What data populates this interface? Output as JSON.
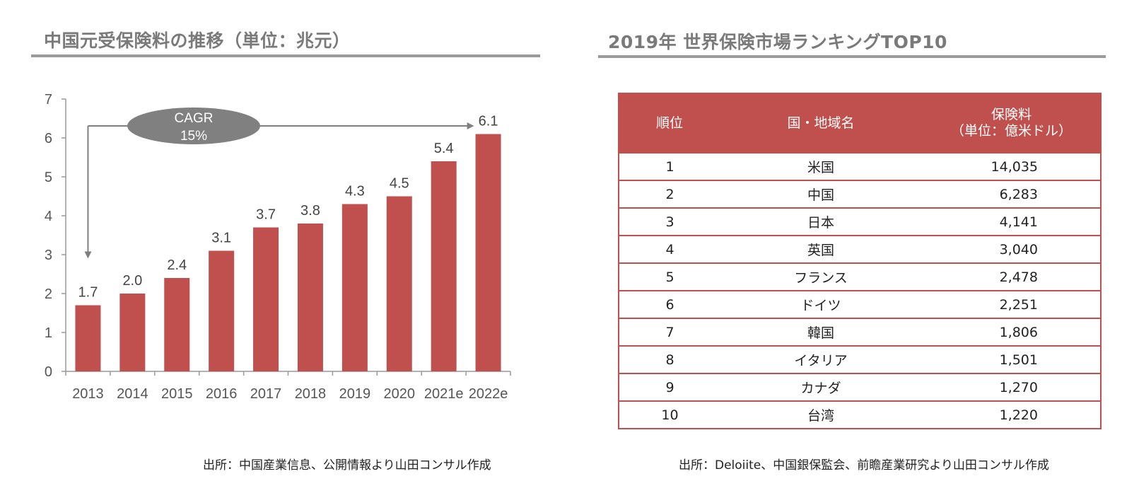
{
  "left": {
    "title": "中国元受保険料の推移（単位：兆元）",
    "source": "出所：中国産業信息、公開情報より山田コンサル作成",
    "cagr_label": "CAGR",
    "cagr_value": "15%"
  },
  "right": {
    "title": "2019年 世界保険市場ランキングTOP10",
    "source": "出所：Deloiite、中国銀保監会、前瞻産業研究より山田コンサル作成",
    "headers": {
      "rank": "順位",
      "country": "国・地域名",
      "premium_line1": "保険料",
      "premium_line2": "（単位：億米ドル）"
    },
    "rows": [
      {
        "rank": "1",
        "country": "米国",
        "premium": "14,035"
      },
      {
        "rank": "2",
        "country": "中国",
        "premium": "6,283"
      },
      {
        "rank": "3",
        "country": "日本",
        "premium": "4,141"
      },
      {
        "rank": "4",
        "country": "英国",
        "premium": "3,040"
      },
      {
        "rank": "5",
        "country": "フランス",
        "premium": "2,478"
      },
      {
        "rank": "6",
        "country": "ドイツ",
        "premium": "2,251"
      },
      {
        "rank": "7",
        "country": "韓国",
        "premium": "1,806"
      },
      {
        "rank": "8",
        "country": "イタリア",
        "premium": "1,501"
      },
      {
        "rank": "9",
        "country": "カナダ",
        "premium": "1,270"
      },
      {
        "rank": "10",
        "country": "台湾",
        "premium": "1,220"
      }
    ]
  },
  "colors": {
    "bar": "#c0504d",
    "table_accent": "#c0504d",
    "cagr_ellipse": "#808080",
    "axis": "#999999",
    "title_text": "#7a7a7a"
  },
  "chart_data": {
    "type": "bar",
    "title": "中国元受保険料の推移（単位：兆元）",
    "categories": [
      "2013",
      "2014",
      "2015",
      "2016",
      "2017",
      "2018",
      "2019",
      "2020",
      "2021e",
      "2022e"
    ],
    "values": [
      1.7,
      2.0,
      2.4,
      3.1,
      3.7,
      3.8,
      4.3,
      4.5,
      5.4,
      6.1
    ],
    "value_labels": [
      "1.7",
      "2.0",
      "2.4",
      "3.1",
      "3.7",
      "3.8",
      "4.3",
      "4.5",
      "5.4",
      "6.1"
    ],
    "yticks": [
      "0",
      "1",
      "2",
      "3",
      "4",
      "5",
      "6",
      "7"
    ],
    "ylim": [
      0,
      7
    ],
    "xlabel": "",
    "ylabel": "",
    "grid": false,
    "legend": "none"
  }
}
